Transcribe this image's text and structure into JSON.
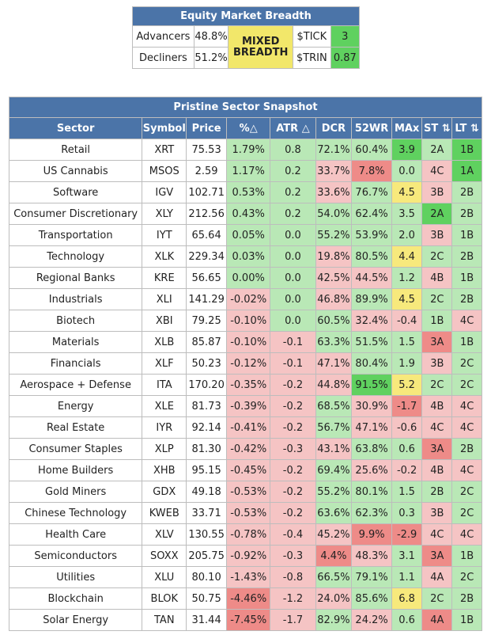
{
  "breadth": {
    "title": "Equity Market Breadth",
    "advancers_label": "Advancers",
    "advancers_value": "48.8%",
    "decliners_label": "Decliners",
    "decliners_value": "51.2%",
    "status_line1": "MIXED",
    "status_line2": "BREADTH",
    "tick_label": "$TICK",
    "tick_value": "3",
    "trin_label": "$TRIN",
    "trin_value": "0.87"
  },
  "snapshot": {
    "title": "Pristine Sector Snapshot",
    "headers": [
      "Sector",
      "Symbol",
      "Price",
      "%△",
      "ATR △",
      "DCR",
      "52WR",
      "MAx",
      "ST ⇅",
      "LT ⇅"
    ],
    "rows": [
      {
        "sector": "Retail",
        "symbol": "XRT",
        "price": "75.53",
        "pct": "1.79%",
        "atr": "0.8",
        "dcr": "72.1%",
        "wr": "60.4%",
        "max": "3.9",
        "st": "2A",
        "lt": "1B",
        "c": [
          "lg",
          "lg",
          "lg",
          "lg",
          "dg",
          "lg",
          "dg",
          "lg"
        ]
      },
      {
        "sector": "US Cannabis",
        "symbol": "MSOS",
        "price": "2.59",
        "pct": "1.17%",
        "atr": "0.2",
        "dcr": "33.7%",
        "wr": "7.8%",
        "max": "0.0",
        "st": "4C",
        "lt": "1A",
        "c": [
          "lg",
          "lg",
          "lr",
          "dr",
          "lg",
          "lr",
          "dg",
          "lg"
        ]
      },
      {
        "sector": "Software",
        "symbol": "IGV",
        "price": "102.71",
        "pct": "0.53%",
        "atr": "0.2",
        "dcr": "33.6%",
        "wr": "76.7%",
        "max": "4.5",
        "st": "3B",
        "lt": "2B",
        "c": [
          "lg",
          "lg",
          "lr",
          "lg",
          "yl",
          "lr",
          "lg",
          "lg"
        ]
      },
      {
        "sector": "Consumer Discretionary",
        "symbol": "XLY",
        "price": "212.56",
        "pct": "0.43%",
        "atr": "0.2",
        "dcr": "54.0%",
        "wr": "62.4%",
        "max": "3.5",
        "st": "2A",
        "lt": "2B",
        "c": [
          "lg",
          "lg",
          "lg",
          "lg",
          "lg",
          "dg",
          "lg",
          "lg"
        ]
      },
      {
        "sector": "Transportation",
        "symbol": "IYT",
        "price": "65.64",
        "pct": "0.05%",
        "atr": "0.0",
        "dcr": "55.2%",
        "wr": "53.9%",
        "max": "2.0",
        "st": "3B",
        "lt": "1B",
        "c": [
          "lg",
          "lg",
          "lg",
          "lg",
          "lg",
          "lr",
          "lg",
          "lg"
        ]
      },
      {
        "sector": "Technology",
        "symbol": "XLK",
        "price": "229.34",
        "pct": "0.03%",
        "atr": "0.0",
        "dcr": "19.8%",
        "wr": "80.5%",
        "max": "4.4",
        "st": "2C",
        "lt": "2B",
        "c": [
          "lg",
          "lg",
          "lr",
          "lg",
          "yl",
          "lg",
          "lg",
          "lg"
        ]
      },
      {
        "sector": "Regional Banks",
        "symbol": "KRE",
        "price": "56.65",
        "pct": "0.00%",
        "atr": "0.0",
        "dcr": "42.5%",
        "wr": "44.5%",
        "max": "1.2",
        "st": "4B",
        "lt": "1B",
        "c": [
          "lg",
          "lg",
          "lr",
          "lr",
          "lg",
          "lr",
          "lg",
          "lg"
        ]
      },
      {
        "sector": "Industrials",
        "symbol": "XLI",
        "price": "141.29",
        "pct": "-0.02%",
        "atr": "0.0",
        "dcr": "46.8%",
        "wr": "89.9%",
        "max": "4.5",
        "st": "2C",
        "lt": "2B",
        "c": [
          "lr",
          "lg",
          "lr",
          "lg",
          "yl",
          "lg",
          "lg",
          "lg"
        ]
      },
      {
        "sector": "Biotech",
        "symbol": "XBI",
        "price": "79.25",
        "pct": "-0.10%",
        "atr": "0.0",
        "dcr": "60.5%",
        "wr": "32.4%",
        "max": "-0.4",
        "st": "1B",
        "lt": "4C",
        "c": [
          "lr",
          "lg",
          "lg",
          "lr",
          "lr",
          "lg",
          "lr",
          "lr"
        ]
      },
      {
        "sector": "Materials",
        "symbol": "XLB",
        "price": "85.87",
        "pct": "-0.10%",
        "atr": "-0.1",
        "dcr": "63.3%",
        "wr": "51.5%",
        "max": "1.5",
        "st": "3A",
        "lt": "1B",
        "c": [
          "lr",
          "lr",
          "lg",
          "lg",
          "lg",
          "dr",
          "lg",
          "lg"
        ]
      },
      {
        "sector": "Financials",
        "symbol": "XLF",
        "price": "50.23",
        "pct": "-0.12%",
        "atr": "-0.1",
        "dcr": "47.1%",
        "wr": "80.4%",
        "max": "1.9",
        "st": "3B",
        "lt": "2C",
        "c": [
          "lr",
          "lr",
          "lr",
          "lg",
          "lg",
          "lr",
          "lg",
          "lg"
        ]
      },
      {
        "sector": "Aerospace + Defense",
        "symbol": "ITA",
        "price": "170.20",
        "pct": "-0.35%",
        "atr": "-0.2",
        "dcr": "44.8%",
        "wr": "91.5%",
        "max": "5.2",
        "st": "2C",
        "lt": "2C",
        "c": [
          "lr",
          "lr",
          "lr",
          "dg",
          "yl",
          "lg",
          "lg",
          "lg"
        ]
      },
      {
        "sector": "Energy",
        "symbol": "XLE",
        "price": "81.73",
        "pct": "-0.39%",
        "atr": "-0.2",
        "dcr": "68.5%",
        "wr": "30.9%",
        "max": "-1.7",
        "st": "4B",
        "lt": "4C",
        "c": [
          "lr",
          "lr",
          "lg",
          "lr",
          "dr",
          "lr",
          "lr",
          "lr"
        ]
      },
      {
        "sector": "Real Estate",
        "symbol": "IYR",
        "price": "92.14",
        "pct": "-0.41%",
        "atr": "-0.2",
        "dcr": "56.7%",
        "wr": "47.1%",
        "max": "-0.6",
        "st": "4C",
        "lt": "4C",
        "c": [
          "lr",
          "lr",
          "lg",
          "lr",
          "lr",
          "lr",
          "lr",
          "lr"
        ]
      },
      {
        "sector": "Consumer Staples",
        "symbol": "XLP",
        "price": "81.30",
        "pct": "-0.42%",
        "atr": "-0.3",
        "dcr": "43.1%",
        "wr": "63.8%",
        "max": "0.6",
        "st": "3A",
        "lt": "2B",
        "c": [
          "lr",
          "lr",
          "lr",
          "lg",
          "lg",
          "dr",
          "lg",
          "lg"
        ]
      },
      {
        "sector": "Home Builders",
        "symbol": "XHB",
        "price": "95.15",
        "pct": "-0.45%",
        "atr": "-0.2",
        "dcr": "69.4%",
        "wr": "25.6%",
        "max": "-0.2",
        "st": "4B",
        "lt": "4C",
        "c": [
          "lr",
          "lr",
          "lg",
          "lr",
          "lr",
          "lr",
          "lr",
          "lr"
        ]
      },
      {
        "sector": "Gold Miners",
        "symbol": "GDX",
        "price": "49.18",
        "pct": "-0.53%",
        "atr": "-0.2",
        "dcr": "55.2%",
        "wr": "80.1%",
        "max": "1.5",
        "st": "2B",
        "lt": "2C",
        "c": [
          "lr",
          "lr",
          "lg",
          "lg",
          "lg",
          "lg",
          "lg",
          "lg"
        ]
      },
      {
        "sector": "Chinese Technology",
        "symbol": "KWEB",
        "price": "33.71",
        "pct": "-0.53%",
        "atr": "-0.2",
        "dcr": "63.6%",
        "wr": "62.3%",
        "max": "0.3",
        "st": "3B",
        "lt": "2C",
        "c": [
          "lr",
          "lr",
          "lg",
          "lg",
          "lg",
          "lr",
          "lg",
          "lg"
        ]
      },
      {
        "sector": "Health Care",
        "symbol": "XLV",
        "price": "130.55",
        "pct": "-0.78%",
        "atr": "-0.4",
        "dcr": "45.2%",
        "wr": "9.9%",
        "max": "-2.9",
        "st": "4C",
        "lt": "4C",
        "c": [
          "lr",
          "lr",
          "lr",
          "dr",
          "dr",
          "lr",
          "lr",
          "lr"
        ]
      },
      {
        "sector": "Semiconductors",
        "symbol": "SOXX",
        "price": "205.75",
        "pct": "-0.92%",
        "atr": "-0.3",
        "dcr": "4.4%",
        "wr": "48.3%",
        "max": "3.1",
        "st": "3A",
        "lt": "1B",
        "c": [
          "lr",
          "lr",
          "dr",
          "lr",
          "lg",
          "dr",
          "lg",
          "lg"
        ]
      },
      {
        "sector": "Utilities",
        "symbol": "XLU",
        "price": "80.10",
        "pct": "-1.43%",
        "atr": "-0.8",
        "dcr": "66.5%",
        "wr": "79.1%",
        "max": "1.1",
        "st": "4A",
        "lt": "2C",
        "c": [
          "lr",
          "lr",
          "lg",
          "lg",
          "lg",
          "lr",
          "lg",
          "lg"
        ]
      },
      {
        "sector": "Blockchain",
        "symbol": "BLOK",
        "price": "50.75",
        "pct": "-4.46%",
        "atr": "-1.2",
        "dcr": "24.0%",
        "wr": "85.6%",
        "max": "6.8",
        "st": "2C",
        "lt": "2B",
        "c": [
          "dr",
          "lr",
          "lr",
          "lg",
          "yl",
          "lg",
          "lg",
          "lg"
        ]
      },
      {
        "sector": "Solar Energy",
        "symbol": "TAN",
        "price": "31.44",
        "pct": "-7.45%",
        "atr": "-1.7",
        "dcr": "82.9%",
        "wr": "24.2%",
        "max": "0.6",
        "st": "4A",
        "lt": "1B",
        "c": [
          "dr",
          "lr",
          "lg",
          "lr",
          "lg",
          "dr",
          "lg",
          "lg"
        ]
      }
    ]
  }
}
